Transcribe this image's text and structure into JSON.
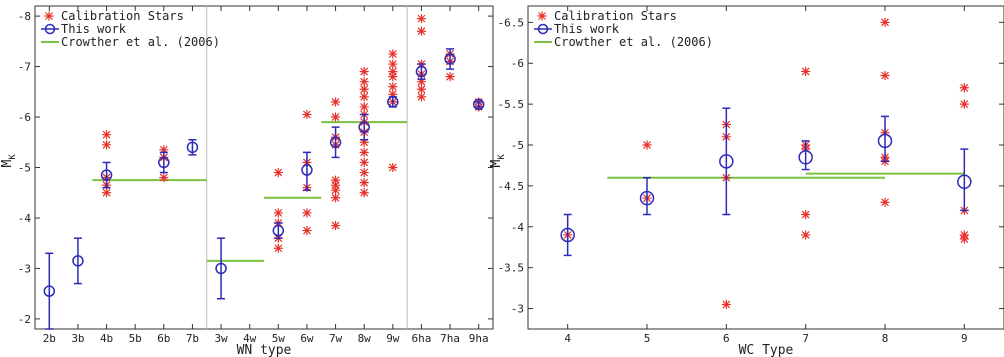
{
  "colors": {
    "calibration": "#e8302a",
    "this_work": "#2b2bb8",
    "crowther": "#7cc242",
    "axis": "#333333",
    "separator": "#bbbbbb"
  },
  "chart_data": [
    {
      "type": "scatter",
      "xlabel": "WN type",
      "ylabel": "M",
      "ylabel_sub": "K",
      "y_inverted": true,
      "ylim": [
        -1.8,
        -8.2
      ],
      "yticks": [
        -2,
        -3,
        -4,
        -5,
        -6,
        -7,
        -8
      ],
      "categories": [
        "2b",
        "3b",
        "4b",
        "5b",
        "6b",
        "7b",
        "3w",
        "4w",
        "5w",
        "6w",
        "7w",
        "8w",
        "9w",
        "6ha",
        "7ha",
        "9ha"
      ],
      "separators_after": [
        "7b",
        "9w"
      ],
      "legend": {
        "position": "top-left",
        "entries": [
          "Calibration Stars",
          "This work",
          "Crowther et al. (2006)"
        ]
      },
      "calibration_stars": [
        {
          "x": "4b",
          "y": [
            -4.5,
            -4.65,
            -4.8,
            -5.45,
            -5.65
          ]
        },
        {
          "x": "6b",
          "y": [
            -4.8,
            -5.2,
            -5.35
          ]
        },
        {
          "x": "5w",
          "y": [
            -3.4,
            -3.6,
            -3.9,
            -4.1,
            -4.9
          ]
        },
        {
          "x": "6w",
          "y": [
            -3.75,
            -4.1,
            -4.6,
            -5.1,
            -6.05
          ]
        },
        {
          "x": "7w",
          "y": [
            -3.85,
            -4.4,
            -4.55,
            -4.65,
            -4.75,
            -5.45,
            -5.6,
            -6.0,
            -6.3
          ]
        },
        {
          "x": "8w",
          "y": [
            -4.5,
            -4.7,
            -4.9,
            -5.1,
            -5.3,
            -5.5,
            -5.7,
            -5.9,
            -6.05,
            -6.2,
            -6.4,
            -6.55,
            -6.7,
            -6.9
          ]
        },
        {
          "x": "9w",
          "y": [
            -5.0,
            -6.3,
            -6.45,
            -6.6,
            -6.8,
            -6.9,
            -7.05,
            -7.25
          ]
        },
        {
          "x": "6ha",
          "y": [
            -6.4,
            -6.55,
            -6.7,
            -6.85,
            -7.05,
            -7.7,
            -7.95
          ]
        },
        {
          "x": "7ha",
          "y": [
            -6.8,
            -7.1,
            -7.25
          ]
        },
        {
          "x": "9ha",
          "y": [
            -6.2,
            -6.3
          ]
        }
      ],
      "this_work": [
        {
          "x": "2b",
          "y": -2.55,
          "err_low": -1.8,
          "err_high": -3.3
        },
        {
          "x": "3b",
          "y": -3.15,
          "err_low": -2.7,
          "err_high": -3.6
        },
        {
          "x": "4b",
          "y": -4.85,
          "err_low": -4.6,
          "err_high": -5.1
        },
        {
          "x": "6b",
          "y": -5.1,
          "err_low": -4.9,
          "err_high": -5.3
        },
        {
          "x": "7b",
          "y": -5.4,
          "err_low": -5.25,
          "err_high": -5.55
        },
        {
          "x": "3w",
          "y": -3.0,
          "err_low": -2.4,
          "err_high": -3.6
        },
        {
          "x": "5w",
          "y": -3.75,
          "err_low": -3.6,
          "err_high": -3.9
        },
        {
          "x": "6w",
          "y": -4.95,
          "err_low": -4.55,
          "err_high": -5.3
        },
        {
          "x": "7w",
          "y": -5.5,
          "err_low": -5.2,
          "err_high": -5.8
        },
        {
          "x": "8w",
          "y": -5.8,
          "err_low": -5.55,
          "err_high": -6.05
        },
        {
          "x": "9w",
          "y": -6.3,
          "err_low": -6.2,
          "err_high": -6.4
        },
        {
          "x": "6ha",
          "y": -6.9,
          "err_low": -6.75,
          "err_high": -7.05
        },
        {
          "x": "7ha",
          "y": -7.15,
          "err_low": -6.95,
          "err_high": -7.35
        },
        {
          "x": "9ha",
          "y": -6.25,
          "err_low": -6.2,
          "err_high": -6.3
        }
      ],
      "crowther": [
        {
          "from": "4b",
          "to": "7b",
          "y": -4.75
        },
        {
          "from": "3w",
          "to": "4w",
          "y": -3.15
        },
        {
          "from": "5w",
          "to": "6w",
          "y": -4.4
        },
        {
          "from": "7w",
          "to": "9w",
          "y": -5.9
        }
      ]
    },
    {
      "type": "scatter",
      "xlabel": "WC Type",
      "ylabel": "M",
      "ylabel_sub": "K",
      "y_inverted": true,
      "ylim": [
        -2.75,
        -6.7
      ],
      "yticks": [
        -3,
        -3.5,
        -4,
        -4.5,
        -5,
        -5.5,
        -6,
        -6.5
      ],
      "categories": [
        "4",
        "5",
        "6",
        "7",
        "8",
        "9"
      ],
      "legend": {
        "position": "top-left",
        "entries": [
          "Calibration Stars",
          "This work",
          "Crowther et al. (2006)"
        ]
      },
      "calibration_stars": [
        {
          "x": "4",
          "y": [
            -3.9
          ]
        },
        {
          "x": "5",
          "y": [
            -4.35,
            -5.0
          ]
        },
        {
          "x": "6",
          "y": [
            -3.05,
            -4.6,
            -5.1,
            -5.25
          ]
        },
        {
          "x": "7",
          "y": [
            -3.9,
            -4.15,
            -4.95,
            -5.0,
            -5.9
          ]
        },
        {
          "x": "8",
          "y": [
            -4.3,
            -4.8,
            -4.85,
            -5.15,
            -5.85,
            -6.5
          ]
        },
        {
          "x": "9",
          "y": [
            -3.85,
            -3.9,
            -4.2,
            -5.5,
            -5.7
          ]
        }
      ],
      "this_work": [
        {
          "x": "4",
          "y": -3.9,
          "err_low": -3.65,
          "err_high": -4.15
        },
        {
          "x": "5",
          "y": -4.35,
          "err_low": -4.15,
          "err_high": -4.6
        },
        {
          "x": "6",
          "y": -4.8,
          "err_low": -4.15,
          "err_high": -5.45
        },
        {
          "x": "7",
          "y": -4.85,
          "err_low": -4.7,
          "err_high": -5.05
        },
        {
          "x": "8",
          "y": -5.05,
          "err_low": -4.8,
          "err_high": -5.35
        },
        {
          "x": "9",
          "y": -4.55,
          "err_low": -4.2,
          "err_high": -4.95
        }
      ],
      "crowther": [
        {
          "from": "5",
          "to": "7.5",
          "y": -4.6
        },
        {
          "from": "7.5",
          "to": "8.5",
          "y": -4.65
        }
      ]
    }
  ]
}
